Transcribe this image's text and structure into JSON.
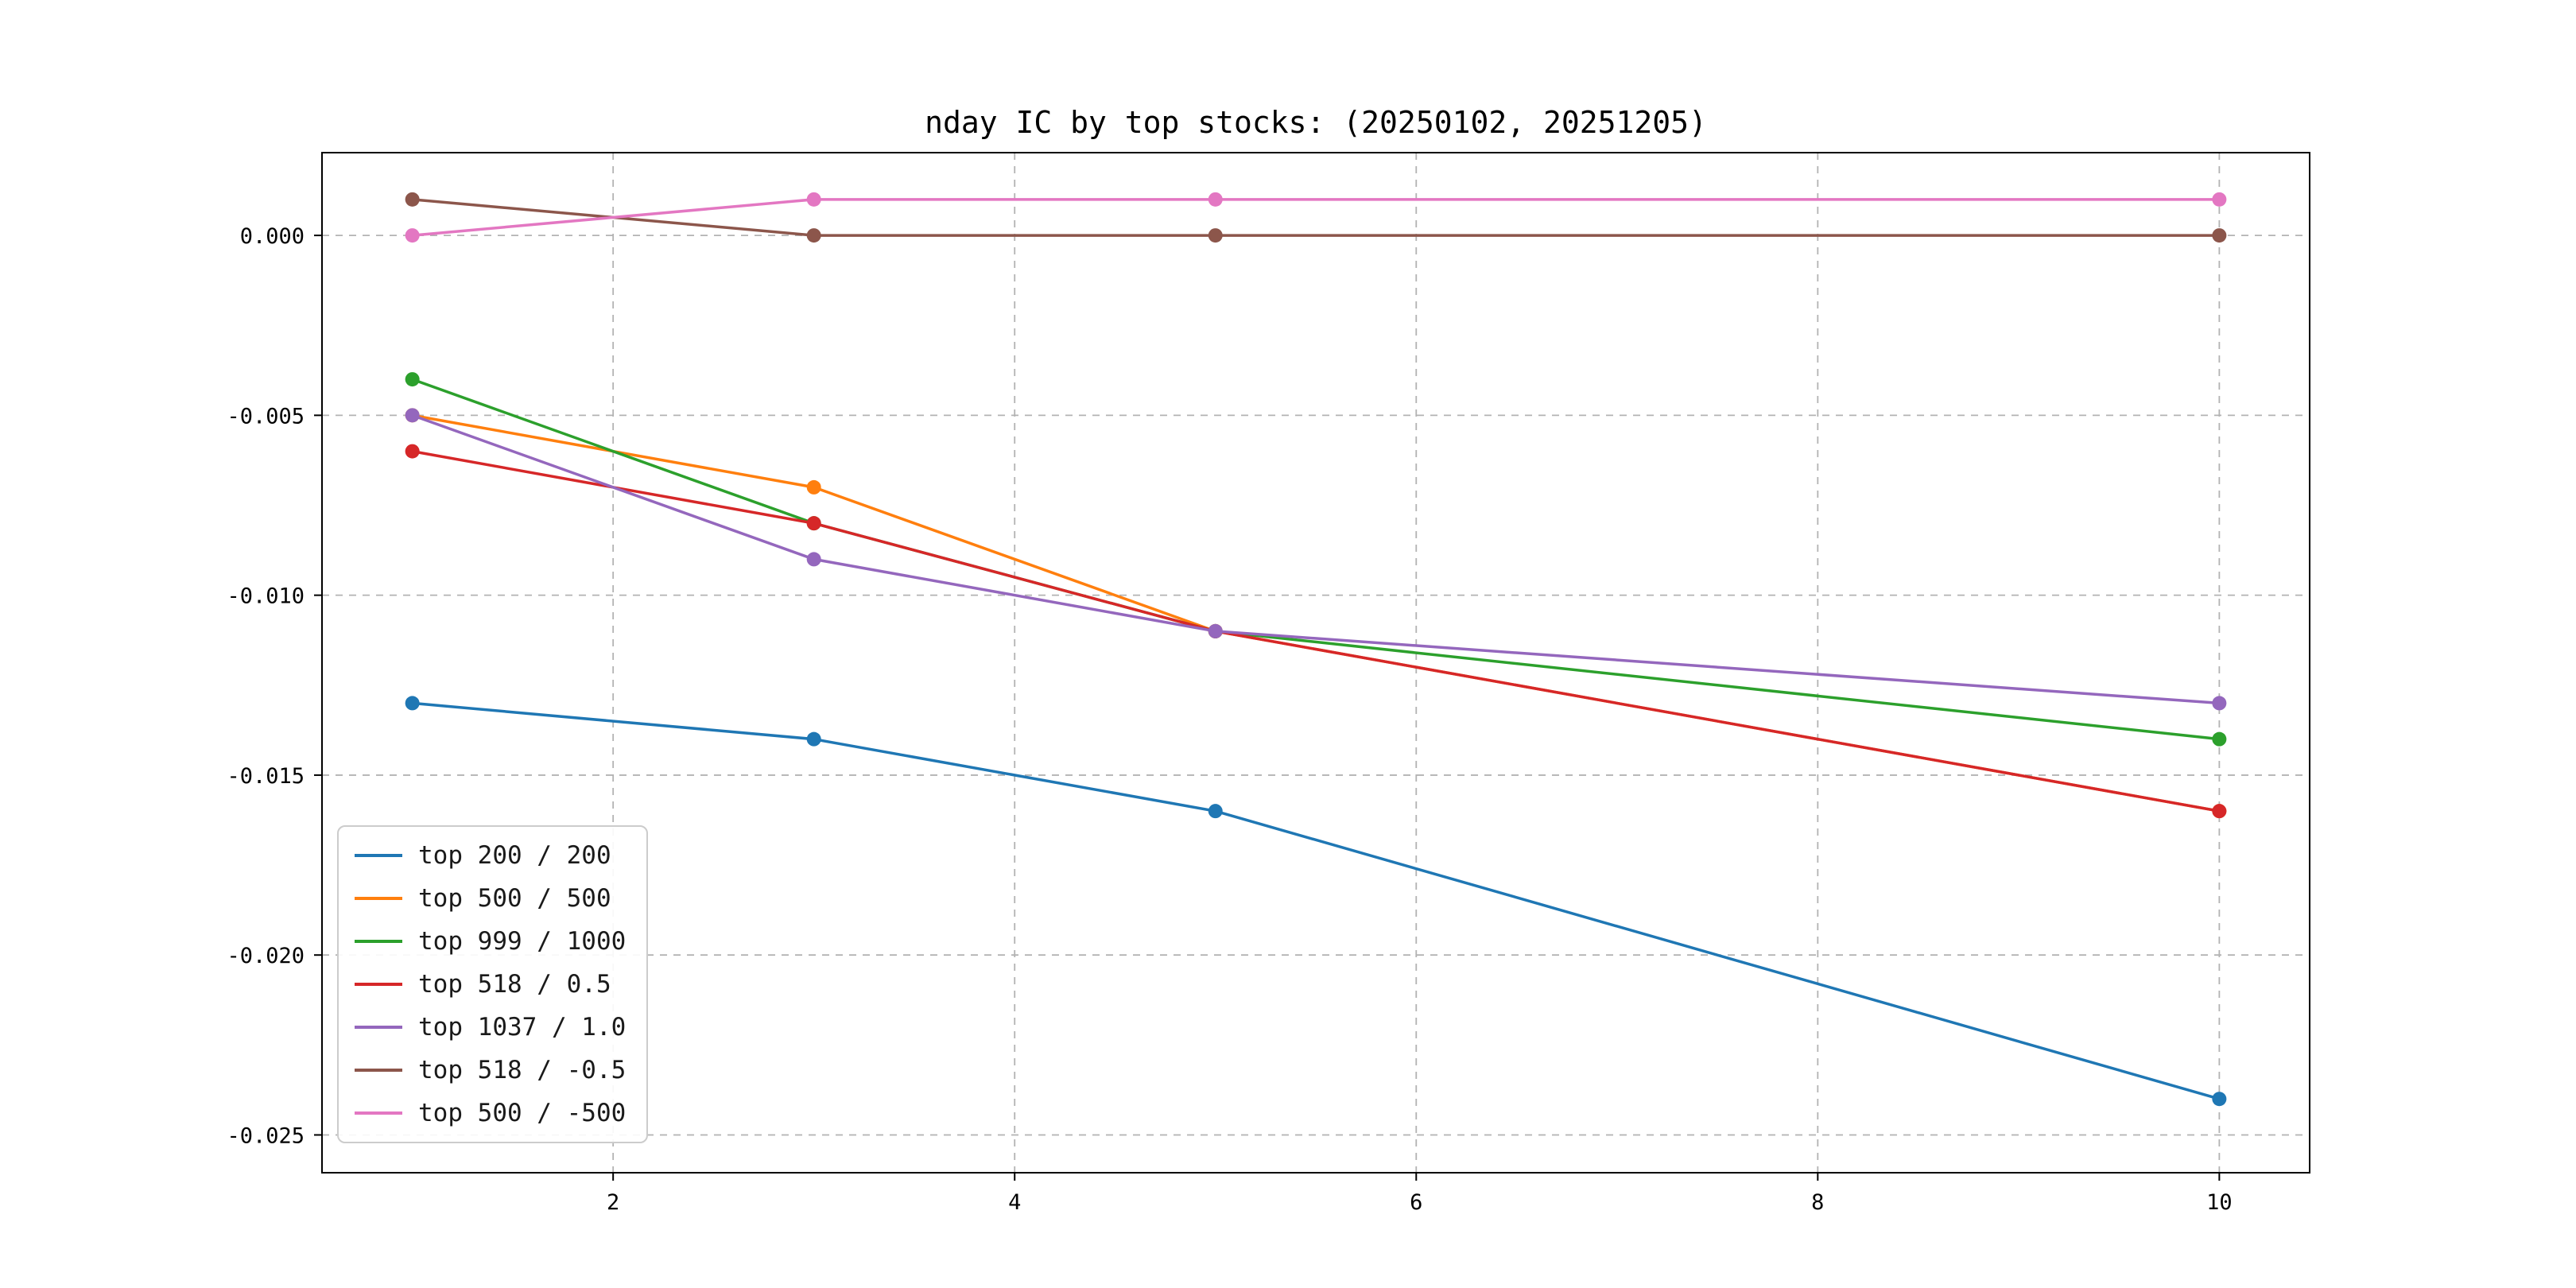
{
  "title": "nday IC by top stocks: (20250102, 20251205)",
  "chart_data": {
    "type": "line",
    "title": "nday IC by top stocks: (20250102, 20251205)",
    "xlabel": "",
    "ylabel": "",
    "x": [
      1,
      3,
      5,
      10
    ],
    "series": [
      {
        "name": "top 200 / 200",
        "color": "#1f77b4",
        "values": [
          -0.013,
          -0.014,
          -0.016,
          -0.024
        ]
      },
      {
        "name": "top 500 / 500",
        "color": "#ff7f0e",
        "values": [
          -0.005,
          -0.007,
          -0.011,
          -0.016
        ]
      },
      {
        "name": "top 999 / 1000",
        "color": "#2ca02c",
        "values": [
          -0.004,
          -0.008,
          -0.011,
          -0.014
        ]
      },
      {
        "name": "top 518 / 0.5",
        "color": "#d62728",
        "values": [
          -0.006,
          -0.008,
          -0.011,
          -0.016
        ]
      },
      {
        "name": "top 1037 / 1.0",
        "color": "#9467bd",
        "values": [
          -0.005,
          -0.009,
          -0.011,
          -0.013
        ]
      },
      {
        "name": "top 518 / -0.5",
        "color": "#8c564b",
        "values": [
          0.001,
          0.0,
          0.0,
          0.0
        ]
      },
      {
        "name": "top 500 / -500",
        "color": "#e377c2",
        "values": [
          0.0,
          0.001,
          0.001,
          0.001
        ]
      }
    ],
    "xlim": [
      0.55,
      10.45
    ],
    "ylim": [
      -0.02605,
      0.0023
    ],
    "x_ticks": [
      2,
      4,
      6,
      8,
      10
    ],
    "y_ticks": [
      0,
      -0.005,
      -0.01,
      -0.015,
      -0.02,
      -0.025
    ],
    "grid": true,
    "grid_color": "#b3b3b3",
    "spine_color": "#000000",
    "legend_position": "lower left"
  }
}
